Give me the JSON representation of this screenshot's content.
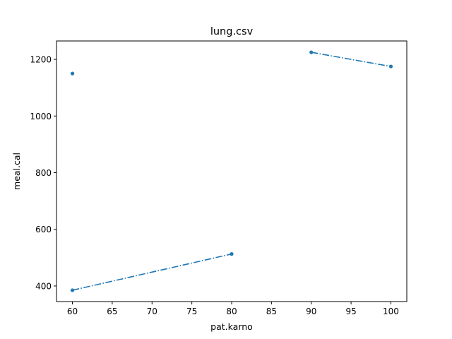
{
  "chart_data": {
    "type": "line",
    "title": "lung.csv",
    "xlabel": "pat.karno",
    "ylabel": "meal.cal",
    "xlim": [
      58,
      102
    ],
    "ylim": [
      345,
      1265
    ],
    "xticks": [
      60,
      65,
      70,
      75,
      80,
      85,
      90,
      95,
      100
    ],
    "yticks": [
      400,
      600,
      800,
      1000,
      1200
    ],
    "grid": false,
    "color": "#1f77b4",
    "line_style": "dash-dot",
    "marker": "point",
    "series": [
      {
        "x": [
          60,
          80,
          null,
          90,
          100,
          null,
          60
        ],
        "y": [
          385,
          513,
          null,
          1225,
          1175,
          null,
          1150
        ]
      }
    ]
  }
}
